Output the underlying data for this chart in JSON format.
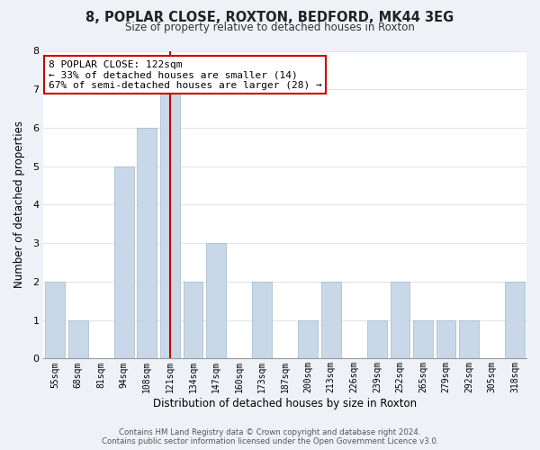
{
  "title": "8, POPLAR CLOSE, ROXTON, BEDFORD, MK44 3EG",
  "subtitle": "Size of property relative to detached houses in Roxton",
  "xlabel": "Distribution of detached houses by size in Roxton",
  "ylabel": "Number of detached properties",
  "categories": [
    "55sqm",
    "68sqm",
    "81sqm",
    "94sqm",
    "108sqm",
    "121sqm",
    "134sqm",
    "147sqm",
    "160sqm",
    "173sqm",
    "187sqm",
    "200sqm",
    "213sqm",
    "226sqm",
    "239sqm",
    "252sqm",
    "265sqm",
    "279sqm",
    "292sqm",
    "305sqm",
    "318sqm"
  ],
  "values": [
    2,
    1,
    0,
    5,
    6,
    7,
    2,
    3,
    0,
    2,
    0,
    1,
    2,
    0,
    1,
    2,
    1,
    1,
    1,
    0,
    2
  ],
  "highlight_index": 5,
  "bar_color": "#c8d8e8",
  "red_line_color": "#cc0000",
  "annotation_line1": "8 POPLAR CLOSE: 122sqm",
  "annotation_line2": "← 33% of detached houses are smaller (14)",
  "annotation_line3": "67% of semi-detached houses are larger (28) →",
  "ylim": [
    0,
    8
  ],
  "yticks": [
    0,
    1,
    2,
    3,
    4,
    5,
    6,
    7,
    8
  ],
  "grid_color": "#dce6f0",
  "footer_line1": "Contains HM Land Registry data © Crown copyright and database right 2024.",
  "footer_line2": "Contains public sector information licensed under the Open Government Licence v3.0.",
  "bg_color": "#eef2f7",
  "plot_bg_color": "#ffffff"
}
